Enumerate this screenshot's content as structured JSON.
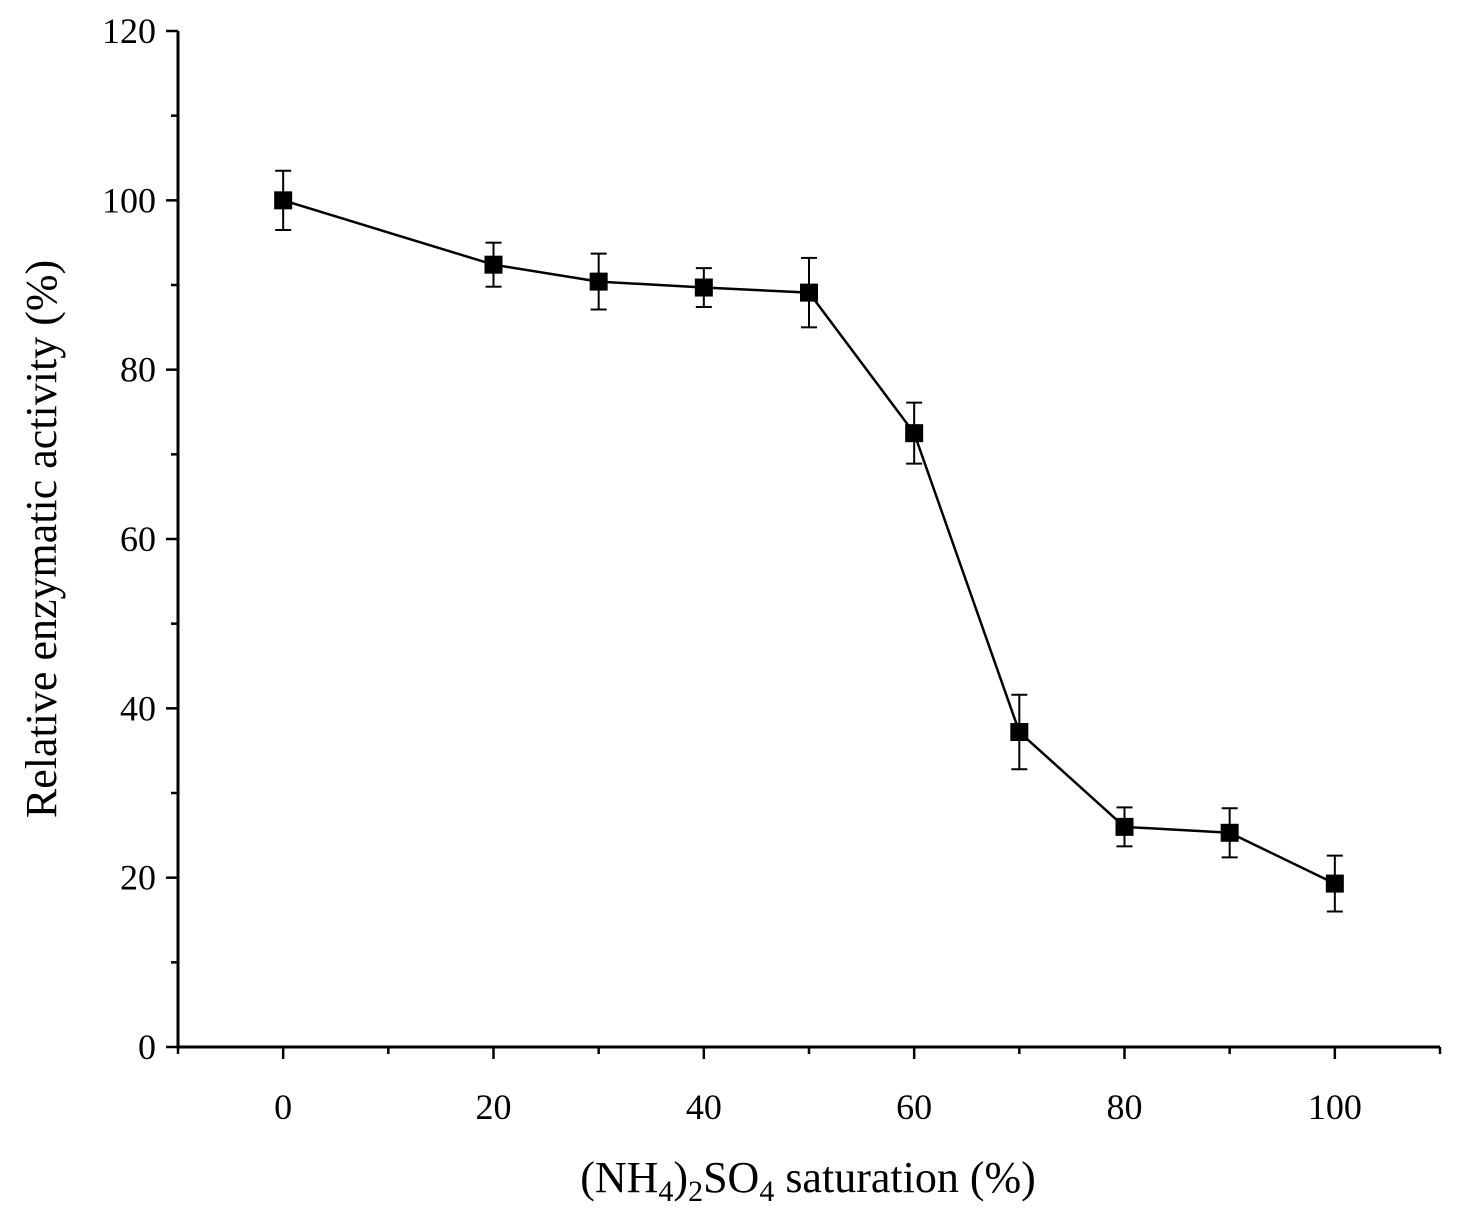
{
  "chart_data": {
    "type": "line",
    "title": "",
    "xlabel": {
      "prefix": "(NH",
      "sub1": "4",
      "mid": ")",
      "sub2": "2",
      "so": "SO",
      "sub3": "4",
      "suffix": " saturation (%)"
    },
    "ylabel": "Relative enzymatic activity (%)",
    "xlim": [
      -10,
      110
    ],
    "ylim": [
      0,
      120
    ],
    "xticks": [
      0,
      20,
      40,
      60,
      80,
      100
    ],
    "xtick_labels": [
      "0",
      "20",
      "40",
      "60",
      "80",
      "100"
    ],
    "xminor": [
      -10,
      10,
      30,
      50,
      70,
      90,
      110
    ],
    "yticks": [
      0,
      20,
      40,
      60,
      80,
      100,
      120
    ],
    "ytick_labels": [
      "0",
      "20",
      "40",
      "60",
      "80",
      "100",
      "120"
    ],
    "yminor": [
      10,
      30,
      50,
      70,
      90,
      110
    ],
    "grid": false,
    "series": [
      {
        "name": "Relative enzymatic activity",
        "marker": "square",
        "color": "#000000",
        "x": [
          0,
          20,
          30,
          40,
          50,
          60,
          70,
          80,
          90,
          100
        ],
        "y": [
          100,
          92.4,
          90.4,
          89.7,
          89.1,
          72.5,
          37.2,
          26.0,
          25.3,
          19.3
        ],
        "err": [
          3.5,
          2.6,
          3.3,
          2.3,
          4.1,
          3.6,
          4.4,
          2.3,
          2.9,
          3.3
        ]
      }
    ]
  }
}
